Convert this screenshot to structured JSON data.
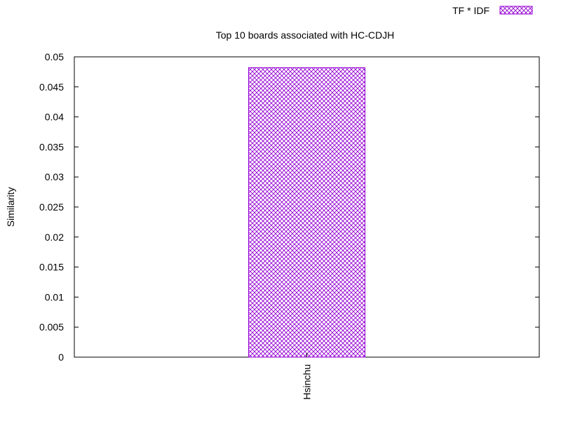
{
  "chart_data": {
    "type": "bar",
    "title": "Top 10 boards associated with HC-CDJH",
    "xlabel": "",
    "ylabel": "Similarity",
    "categories": [
      "Hsinchu"
    ],
    "series": [
      {
        "name": "TF * IDF",
        "values": [
          0.0482
        ]
      }
    ],
    "ylim": [
      0,
      0.05
    ],
    "yticks": [
      "0",
      "0.005",
      "0.01",
      "0.015",
      "0.02",
      "0.025",
      "0.03",
      "0.035",
      "0.04",
      "0.045",
      "0.05"
    ],
    "grid": false,
    "legend_position": "top-right",
    "colors": {
      "bar": "#9400d3",
      "axis": "#000000"
    },
    "bar_pattern": "crosshatch"
  }
}
